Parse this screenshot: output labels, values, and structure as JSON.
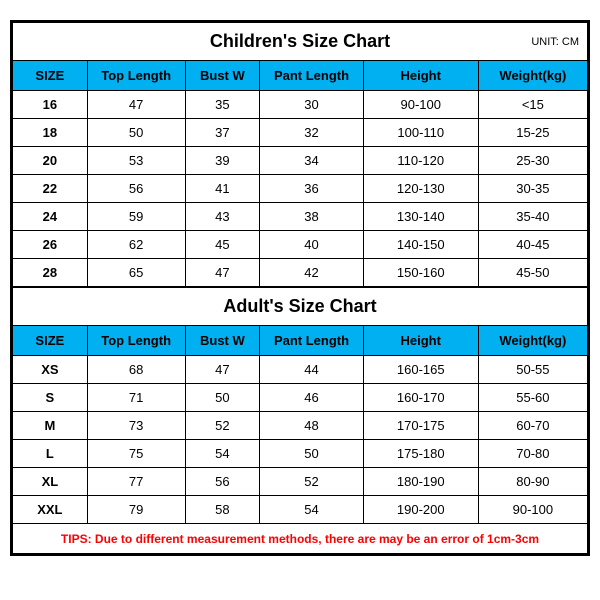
{
  "unit_label": "UNIT: CM",
  "columns": [
    "SIZE",
    "Top Length",
    "Bust W",
    "Pant Length",
    "Height",
    "Weight(kg)"
  ],
  "children": {
    "title": "Children's Size Chart",
    "rows": [
      [
        "16",
        "47",
        "35",
        "30",
        "90-100",
        "<15"
      ],
      [
        "18",
        "50",
        "37",
        "32",
        "100-110",
        "15-25"
      ],
      [
        "20",
        "53",
        "39",
        "34",
        "110-120",
        "25-30"
      ],
      [
        "22",
        "56",
        "41",
        "36",
        "120-130",
        "30-35"
      ],
      [
        "24",
        "59",
        "43",
        "38",
        "130-140",
        "35-40"
      ],
      [
        "26",
        "62",
        "45",
        "40",
        "140-150",
        "40-45"
      ],
      [
        "28",
        "65",
        "47",
        "42",
        "150-160",
        "45-50"
      ]
    ]
  },
  "adult": {
    "title": "Adult's Size Chart",
    "rows": [
      [
        "XS",
        "68",
        "47",
        "44",
        "160-165",
        "50-55"
      ],
      [
        "S",
        "71",
        "50",
        "46",
        "160-170",
        "55-60"
      ],
      [
        "M",
        "73",
        "52",
        "48",
        "170-175",
        "60-70"
      ],
      [
        "L",
        "75",
        "54",
        "50",
        "175-180",
        "70-80"
      ],
      [
        "XL",
        "77",
        "56",
        "52",
        "180-190",
        "80-90"
      ],
      [
        "XXL",
        "79",
        "58",
        "54",
        "190-200",
        "90-100"
      ]
    ]
  },
  "tips": "TIPS: Due to different measurement methods, there are may be an error of 1cm-3cm",
  "style": {
    "header_bg": "#00b0f0",
    "border_color": "#000000",
    "tips_color": "#ff0000",
    "background": "#ffffff"
  }
}
